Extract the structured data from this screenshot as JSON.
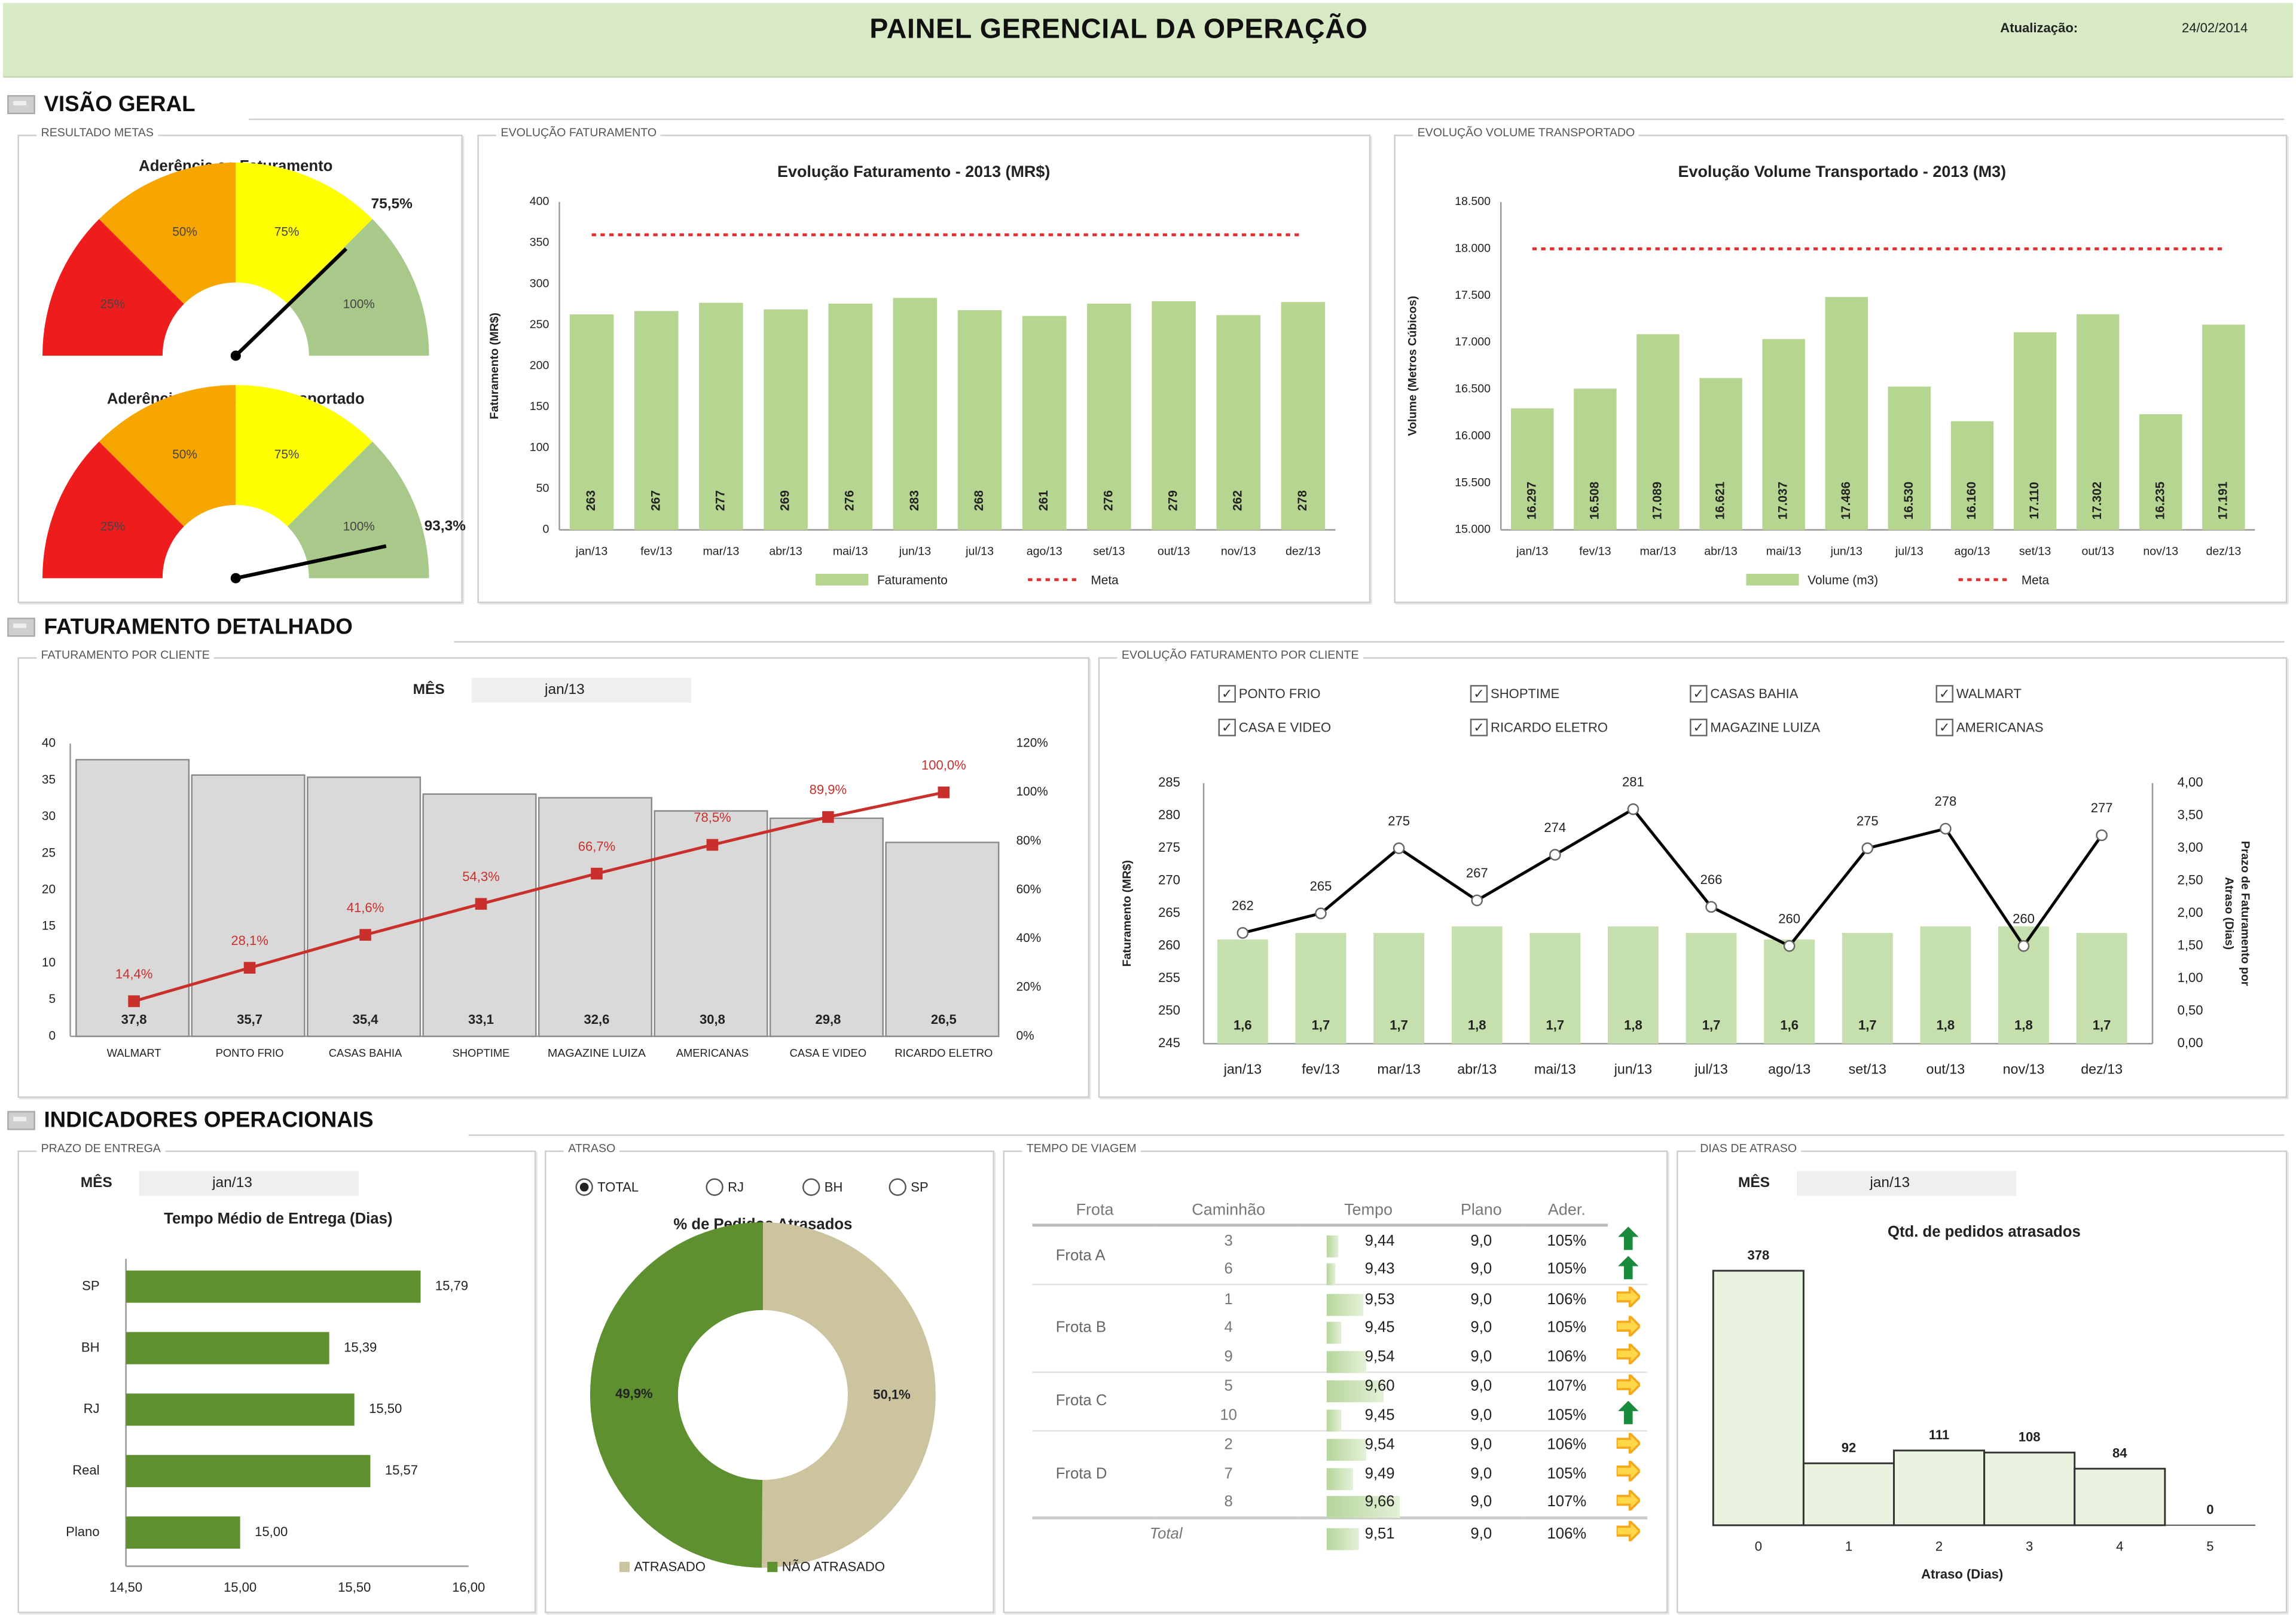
{
  "header": {
    "title": "PAINEL GERENCIAL DA OPERAÇÃO",
    "updated_label": "Atualização:",
    "updated_date": "24/02/2014"
  },
  "sections": {
    "overview": "VISÃO GERAL",
    "billing": "FATURAMENTO DETALHADO",
    "operational": "INDICADORES OPERACIONAIS"
  },
  "panels": {
    "goals": "RESULTADO METAS",
    "billing_evolution": "EVOLUÇÃO FATURAMENTO",
    "volume_evolution": "EVOLUÇÃO VOLUME TRANSPORTADO",
    "billing_by_client": "FATURAMENTO POR CLIENTE",
    "billing_evolution_by_client": "EVOLUÇÃO FATURAMENTO POR CLIENTE",
    "delivery_time": "PRAZO DE ENTREGA",
    "delay": "ATRASO",
    "travel_time": "TEMPO DE VIAGEM",
    "delay_days": "DIAS DE ATRASO"
  },
  "colors": {
    "bar_green": "#b6d591",
    "meta_red": "#e03030",
    "pareto_gray": "#d9d9d9",
    "pareto_line": "#c9302c",
    "dark_green": "#5e9030",
    "tan": "#cbc49f",
    "hist_fill": "#eaf3df",
    "trend_up": "#1a8a3c",
    "trend_side": "#f6a81c"
  },
  "gauges": [
    {
      "title": "Aderência ao Faturamento",
      "value": 75.5,
      "value_label": "75,5%",
      "segments": [
        "25%",
        "50%",
        "75%",
        "100%"
      ],
      "segment_colors": [
        "#ee1c1c",
        "#f7a600",
        "#ffff00",
        "#a8c98a"
      ]
    },
    {
      "title": "Aderência ao Volume Transportado",
      "value": 93.3,
      "value_label": "93,3%",
      "segments": [
        "25%",
        "50%",
        "75%",
        "100%"
      ],
      "segment_colors": [
        "#ee1c1c",
        "#f7a600",
        "#ffff00",
        "#a8c98a"
      ]
    }
  ],
  "filters": {
    "month_label": "MÊS",
    "month_value": "jan/13",
    "clients": [
      {
        "label": "PONTO FRIO",
        "checked": true
      },
      {
        "label": "SHOPTIME",
        "checked": true
      },
      {
        "label": "CASAS BAHIA",
        "checked": true
      },
      {
        "label": "WALMART",
        "checked": true
      },
      {
        "label": "CASA E VIDEO",
        "checked": true
      },
      {
        "label": "RICARDO ELETRO",
        "checked": true
      },
      {
        "label": "MAGAZINE LUIZA",
        "checked": true
      },
      {
        "label": "AMERICANAS",
        "checked": true
      }
    ],
    "delay_regions": [
      {
        "label": "TOTAL",
        "selected": true
      },
      {
        "label": "RJ",
        "selected": false
      },
      {
        "label": "BH",
        "selected": false
      },
      {
        "label": "SP",
        "selected": false
      }
    ]
  },
  "chart_data": [
    {
      "type": "bar",
      "title": "Evolução Faturamento - 2013 (MR$)",
      "ylabel": "Faturamento (MR$)",
      "xlabel": "",
      "categories": [
        "jan/13",
        "fev/13",
        "mar/13",
        "abr/13",
        "mai/13",
        "jun/13",
        "jul/13",
        "ago/13",
        "set/13",
        "out/13",
        "nov/13",
        "dez/13"
      ],
      "series": [
        {
          "name": "Faturamento",
          "values": [
            263,
            267,
            277,
            269,
            276,
            283,
            268,
            261,
            276,
            279,
            262,
            278
          ],
          "labels": [
            "263",
            "267",
            "277",
            "269",
            "276",
            "283",
            "268",
            "261",
            "276",
            "279",
            "262",
            "278"
          ]
        },
        {
          "name": "Meta",
          "line": "dashed",
          "value": 360
        }
      ],
      "ylim": [
        0,
        400
      ],
      "yticks": [
        "0",
        "50",
        "100",
        "150",
        "200",
        "250",
        "300",
        "350",
        "400"
      ],
      "legend": "bottom",
      "grid": false
    },
    {
      "type": "bar",
      "title": "Evolução Volume Transportado - 2013 (M3)",
      "ylabel": "Volume (Metros Cúbicos)",
      "xlabel": "",
      "categories": [
        "jan/13",
        "fev/13",
        "mar/13",
        "abr/13",
        "mai/13",
        "jun/13",
        "jul/13",
        "ago/13",
        "set/13",
        "out/13",
        "nov/13",
        "dez/13"
      ],
      "series": [
        {
          "name": "Volume (m3)",
          "values": [
            16297,
            16508,
            17089,
            16621,
            17037,
            17486,
            16530,
            16160,
            17110,
            17302,
            16235,
            17191
          ],
          "labels": [
            "16.297",
            "16.508",
            "17.089",
            "16.621",
            "17.037",
            "17.486",
            "16.530",
            "16.160",
            "17.110",
            "17.302",
            "16.235",
            "17.191"
          ]
        },
        {
          "name": "Meta",
          "line": "dashed",
          "value": 18000
        }
      ],
      "ylim": [
        15000,
        18500
      ],
      "yticks": [
        "15.000",
        "15.500",
        "16.000",
        "16.500",
        "17.000",
        "17.500",
        "18.000",
        "18.500"
      ],
      "legend": "bottom",
      "grid": false
    },
    {
      "type": "bar+line",
      "title": "",
      "categories": [
        "WALMART",
        "PONTO FRIO",
        "CASAS BAHIA",
        "SHOPTIME",
        "MAGAZINE LUIZA",
        "AMERICANAS",
        "CASA E VIDEO",
        "RICARDO ELETRO"
      ],
      "bars": {
        "values": [
          37.8,
          35.7,
          35.4,
          33.1,
          32.6,
          30.8,
          29.8,
          26.5
        ],
        "labels": [
          "37,8",
          "35,7",
          "35,4",
          "33,1",
          "32,6",
          "30,8",
          "29,8",
          "26,5"
        ]
      },
      "line": {
        "values": [
          14.4,
          28.1,
          41.6,
          54.3,
          66.7,
          78.5,
          89.9,
          100.0
        ],
        "labels": [
          "14,4%",
          "28,1%",
          "41,6%",
          "54,3%",
          "66,7%",
          "78,5%",
          "89,9%",
          "100,0%"
        ]
      },
      "ylim": [
        0,
        40
      ],
      "yticks": [
        "0",
        "5",
        "10",
        "15",
        "20",
        "25",
        "30",
        "35",
        "40"
      ],
      "y2lim": [
        0,
        120
      ],
      "y2ticks": [
        "0%",
        "20%",
        "40%",
        "60%",
        "80%",
        "100%",
        "120%"
      ]
    },
    {
      "type": "bar+line",
      "title": "",
      "ylabel": "Faturamento (MR$)",
      "y2label": [
        "Prazo de Faturamento por",
        "Atraso (Dias)"
      ],
      "categories": [
        "jan/13",
        "fev/13",
        "mar/13",
        "abr/13",
        "mai/13",
        "jun/13",
        "jul/13",
        "ago/13",
        "set/13",
        "out/13",
        "nov/13",
        "dez/13"
      ],
      "line": {
        "values": [
          262,
          265,
          275,
          267,
          274,
          281,
          266,
          260,
          275,
          278,
          260,
          277
        ],
        "labels": [
          "262",
          "265",
          "275",
          "267",
          "274",
          "281",
          "266",
          "260",
          "275",
          "278",
          "260",
          "277"
        ]
      },
      "bars": {
        "values": [
          1.6,
          1.7,
          1.7,
          1.8,
          1.7,
          1.8,
          1.7,
          1.6,
          1.7,
          1.8,
          1.8,
          1.7
        ],
        "labels": [
          "1,6",
          "1,7",
          "1,7",
          "1,8",
          "1,7",
          "1,8",
          "1,7",
          "1,6",
          "1,7",
          "1,8",
          "1,8",
          "1,7"
        ]
      },
      "ylim": [
        245,
        285
      ],
      "yticks": [
        "245",
        "250",
        "255",
        "260",
        "265",
        "270",
        "275",
        "280",
        "285"
      ],
      "y2lim": [
        0,
        4
      ],
      "y2ticks": [
        "0,00",
        "0,50",
        "1,00",
        "1,50",
        "2,00",
        "2,50",
        "3,00",
        "3,50",
        "4,00"
      ]
    },
    {
      "type": "bar",
      "orientation": "horizontal",
      "title": "Tempo Médio de Entrega (Dias)",
      "categories": [
        "SP",
        "BH",
        "RJ",
        "Real",
        "Plano"
      ],
      "values": [
        15.79,
        15.39,
        15.5,
        15.57,
        15.0
      ],
      "labels": [
        "15,79",
        "15,39",
        "15,50",
        "15,57",
        "15,00"
      ],
      "xlim": [
        14.5,
        16.0
      ],
      "xticks": [
        "14,50",
        "15,00",
        "15,50",
        "16,00"
      ]
    },
    {
      "type": "pie",
      "donut": true,
      "title": "% de Pedidos Atrasados",
      "slices": [
        {
          "name": "ATRASADO",
          "value": 50.1,
          "label": "50,1%",
          "color": "#cbc49f"
        },
        {
          "name": "NÃO ATRASADO",
          "value": 49.9,
          "label": "49,9%",
          "color": "#5e9030"
        }
      ],
      "legend": "bottom"
    },
    {
      "type": "bar",
      "title": "Qtd. de pedidos atrasados",
      "xlabel": "Atraso (Dias)",
      "categories": [
        "0",
        "1",
        "2",
        "3",
        "4",
        "5"
      ],
      "values": [
        378,
        92,
        111,
        108,
        84,
        0
      ],
      "labels": [
        "378",
        "92",
        "111",
        "108",
        "84",
        "0"
      ]
    }
  ],
  "travel_table": {
    "headers": [
      "Frota",
      "Caminhão",
      "Tempo",
      "Plano",
      "Ader."
    ],
    "groups": [
      {
        "fleet": "Frota A",
        "rows": [
          {
            "truck": "3",
            "time": "9,44",
            "t": 9.44,
            "plan": "9,0",
            "adh": "105%",
            "trend": "up"
          },
          {
            "truck": "6",
            "time": "9,43",
            "t": 9.43,
            "plan": "9,0",
            "adh": "105%",
            "trend": "up"
          }
        ]
      },
      {
        "fleet": "Frota B",
        "rows": [
          {
            "truck": "1",
            "time": "9,53",
            "t": 9.53,
            "plan": "9,0",
            "adh": "106%",
            "trend": "side"
          },
          {
            "truck": "4",
            "time": "9,45",
            "t": 9.45,
            "plan": "9,0",
            "adh": "105%",
            "trend": "side"
          },
          {
            "truck": "9",
            "time": "9,54",
            "t": 9.54,
            "plan": "9,0",
            "adh": "106%",
            "trend": "side"
          }
        ]
      },
      {
        "fleet": "Frota C",
        "rows": [
          {
            "truck": "5",
            "time": "9,60",
            "t": 9.6,
            "plan": "9,0",
            "adh": "107%",
            "trend": "side"
          },
          {
            "truck": "10",
            "time": "9,45",
            "t": 9.45,
            "plan": "9,0",
            "adh": "105%",
            "trend": "up"
          }
        ]
      },
      {
        "fleet": "Frota D",
        "rows": [
          {
            "truck": "2",
            "time": "9,54",
            "t": 9.54,
            "plan": "9,0",
            "adh": "106%",
            "trend": "side"
          },
          {
            "truck": "7",
            "time": "9,49",
            "t": 9.49,
            "plan": "9,0",
            "adh": "105%",
            "trend": "side"
          },
          {
            "truck": "8",
            "time": "9,66",
            "t": 9.66,
            "plan": "9,0",
            "adh": "107%",
            "trend": "side"
          }
        ]
      }
    ],
    "total": {
      "label": "Total",
      "time": "9,51",
      "t": 9.51,
      "plan": "9,0",
      "adh": "106%",
      "trend": "side"
    }
  }
}
